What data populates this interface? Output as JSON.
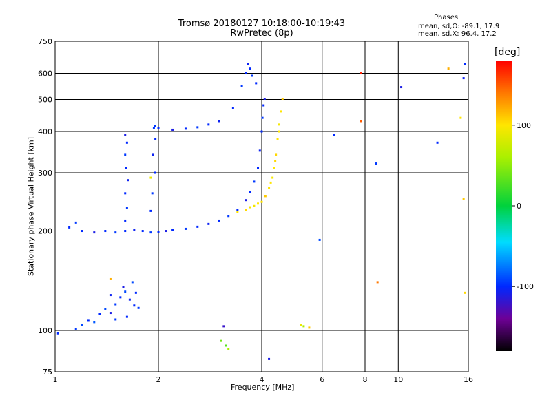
{
  "chart_data": {
    "type": "scatter",
    "title": "Tromsø 20180127 10:18:00-10:19:43",
    "subtitle": "RwPretec (8p)",
    "xlabel": "Frequency [MHz]",
    "ylabel": "Stationary phase Virtual Height [km]",
    "x_scale": "log",
    "y_scale": "log",
    "xlim": [
      1,
      16
    ],
    "ylim": [
      75,
      750
    ],
    "x_ticks": [
      1,
      2,
      4,
      6,
      8,
      10,
      16
    ],
    "x_tick_labels": [
      "1",
      "2",
      "4",
      "6",
      "8",
      "10",
      "16"
    ],
    "y_ticks": [
      75,
      100,
      200,
      300,
      400,
      500,
      600,
      750
    ],
    "y_tick_labels": [
      "75",
      "100",
      "200",
      "300",
      "400",
      "500",
      "600",
      "750"
    ],
    "grid": true,
    "phase_info": {
      "heading": "Phases",
      "line_o": "mean, sd,O: -89.1, 17.9",
      "line_x": "mean, sd,X: 96.4, 17.2"
    },
    "colorbar": {
      "label": "[deg]",
      "range": [
        -180,
        180
      ],
      "ticks": [
        100,
        0,
        -100
      ],
      "tick_labels": [
        "100",
        "0",
        "-100"
      ]
    },
    "series": [
      {
        "id": "o-mode",
        "points": [
          [
            1.02,
            98,
            -100
          ],
          [
            1.15,
            101,
            -95
          ],
          [
            1.2,
            104,
            -90
          ],
          [
            1.25,
            107,
            -100
          ],
          [
            1.3,
            106,
            -85
          ],
          [
            1.35,
            112,
            -100
          ],
          [
            1.4,
            116,
            -90
          ],
          [
            1.45,
            113,
            -110
          ],
          [
            1.5,
            120,
            -95
          ],
          [
            1.55,
            126,
            -100
          ],
          [
            1.6,
            131,
            -90
          ],
          [
            1.65,
            124,
            -105
          ],
          [
            1.7,
            119,
            -100
          ],
          [
            1.75,
            117,
            -95
          ],
          [
            1.72,
            130,
            -100
          ],
          [
            1.58,
            135,
            -110
          ],
          [
            1.62,
            110,
            -100
          ],
          [
            1.5,
            108,
            -95
          ],
          [
            1.45,
            128,
            -105
          ],
          [
            1.68,
            140,
            -90
          ],
          [
            1.1,
            205,
            -100
          ],
          [
            1.15,
            212,
            -95
          ],
          [
            1.2,
            200,
            -100
          ],
          [
            1.3,
            198,
            -110
          ],
          [
            1.4,
            200,
            -100
          ],
          [
            1.5,
            198,
            -95
          ],
          [
            1.6,
            200,
            -100
          ],
          [
            1.7,
            201,
            -105
          ],
          [
            1.8,
            200,
            -100
          ],
          [
            1.9,
            198,
            -95
          ],
          [
            2.0,
            199,
            -100
          ],
          [
            2.1,
            200,
            -110
          ],
          [
            2.2,
            201,
            -100
          ],
          [
            2.4,
            203,
            -95
          ],
          [
            2.6,
            206,
            -100
          ],
          [
            2.8,
            210,
            -105
          ],
          [
            3.0,
            215,
            -100
          ],
          [
            3.2,
            222,
            -95
          ],
          [
            3.4,
            232,
            -100
          ],
          [
            3.6,
            248,
            -110
          ],
          [
            3.7,
            262,
            -100
          ],
          [
            3.8,
            282,
            -95
          ],
          [
            3.9,
            310,
            -100
          ],
          [
            3.95,
            350,
            -105
          ],
          [
            4.0,
            400,
            -100
          ],
          [
            4.02,
            440,
            -95
          ],
          [
            4.05,
            480,
            -100
          ],
          [
            4.08,
            500,
            -110
          ],
          [
            3.85,
            560,
            -100
          ],
          [
            3.75,
            590,
            -95
          ],
          [
            3.7,
            620,
            -100
          ],
          [
            3.65,
            640,
            -105
          ],
          [
            3.6,
            600,
            -100
          ],
          [
            3.5,
            550,
            -95
          ],
          [
            3.3,
            470,
            -100
          ],
          [
            3.0,
            430,
            -105
          ],
          [
            2.8,
            420,
            -100
          ],
          [
            2.6,
            412,
            -95
          ],
          [
            2.4,
            408,
            -100
          ],
          [
            2.2,
            405,
            -110
          ],
          [
            2.0,
            410,
            -100
          ],
          [
            1.95,
            415,
            -95
          ],
          [
            1.6,
            215,
            -100
          ],
          [
            1.62,
            235,
            -95
          ],
          [
            1.6,
            260,
            -100
          ],
          [
            1.63,
            285,
            -105
          ],
          [
            1.61,
            310,
            -100
          ],
          [
            1.6,
            340,
            -95
          ],
          [
            1.62,
            370,
            -100
          ],
          [
            1.6,
            390,
            -110
          ],
          [
            1.9,
            230,
            -100
          ],
          [
            1.92,
            260,
            -95
          ],
          [
            1.95,
            300,
            -100
          ],
          [
            1.93,
            340,
            -105
          ],
          [
            1.96,
            380,
            -100
          ],
          [
            1.94,
            410,
            -95
          ],
          [
            3.1,
            103,
            -120
          ],
          [
            4.2,
            82,
            -110
          ],
          [
            5.9,
            188,
            -90
          ],
          [
            6.5,
            390,
            -100
          ],
          [
            8.6,
            320,
            -95
          ],
          [
            10.2,
            545,
            -110
          ],
          [
            13.0,
            370,
            -100
          ],
          [
            15.5,
            580,
            -105
          ],
          [
            15.6,
            640,
            -100
          ]
        ]
      },
      {
        "id": "x-mode",
        "points": [
          [
            3.4,
            228,
            100
          ],
          [
            3.6,
            232,
            105
          ],
          [
            3.8,
            238,
            95
          ],
          [
            4.0,
            245,
            100
          ],
          [
            4.1,
            255,
            110
          ],
          [
            4.2,
            270,
            100
          ],
          [
            4.3,
            290,
            95
          ],
          [
            4.35,
            310,
            100
          ],
          [
            4.4,
            340,
            105
          ],
          [
            4.45,
            380,
            100
          ],
          [
            4.5,
            420,
            95
          ],
          [
            4.55,
            460,
            100
          ],
          [
            4.6,
            500,
            110
          ],
          [
            3.9,
            242,
            100
          ],
          [
            3.7,
            236,
            95
          ],
          [
            4.25,
            280,
            100
          ],
          [
            4.38,
            325,
            105
          ],
          [
            4.48,
            400,
            100
          ],
          [
            3.05,
            93,
            40
          ],
          [
            3.15,
            90,
            30
          ],
          [
            3.2,
            88,
            60
          ],
          [
            5.2,
            104,
            90
          ],
          [
            5.3,
            103,
            60
          ],
          [
            5.5,
            102,
            110
          ],
          [
            1.45,
            143,
            120
          ],
          [
            1.9,
            290,
            90
          ],
          [
            7.8,
            430,
            150
          ],
          [
            7.8,
            600,
            170
          ],
          [
            8.7,
            140,
            140
          ],
          [
            14.0,
            620,
            120
          ],
          [
            15.2,
            440,
            100
          ],
          [
            15.5,
            250,
            110
          ],
          [
            15.6,
            130,
            105
          ]
        ]
      }
    ]
  }
}
